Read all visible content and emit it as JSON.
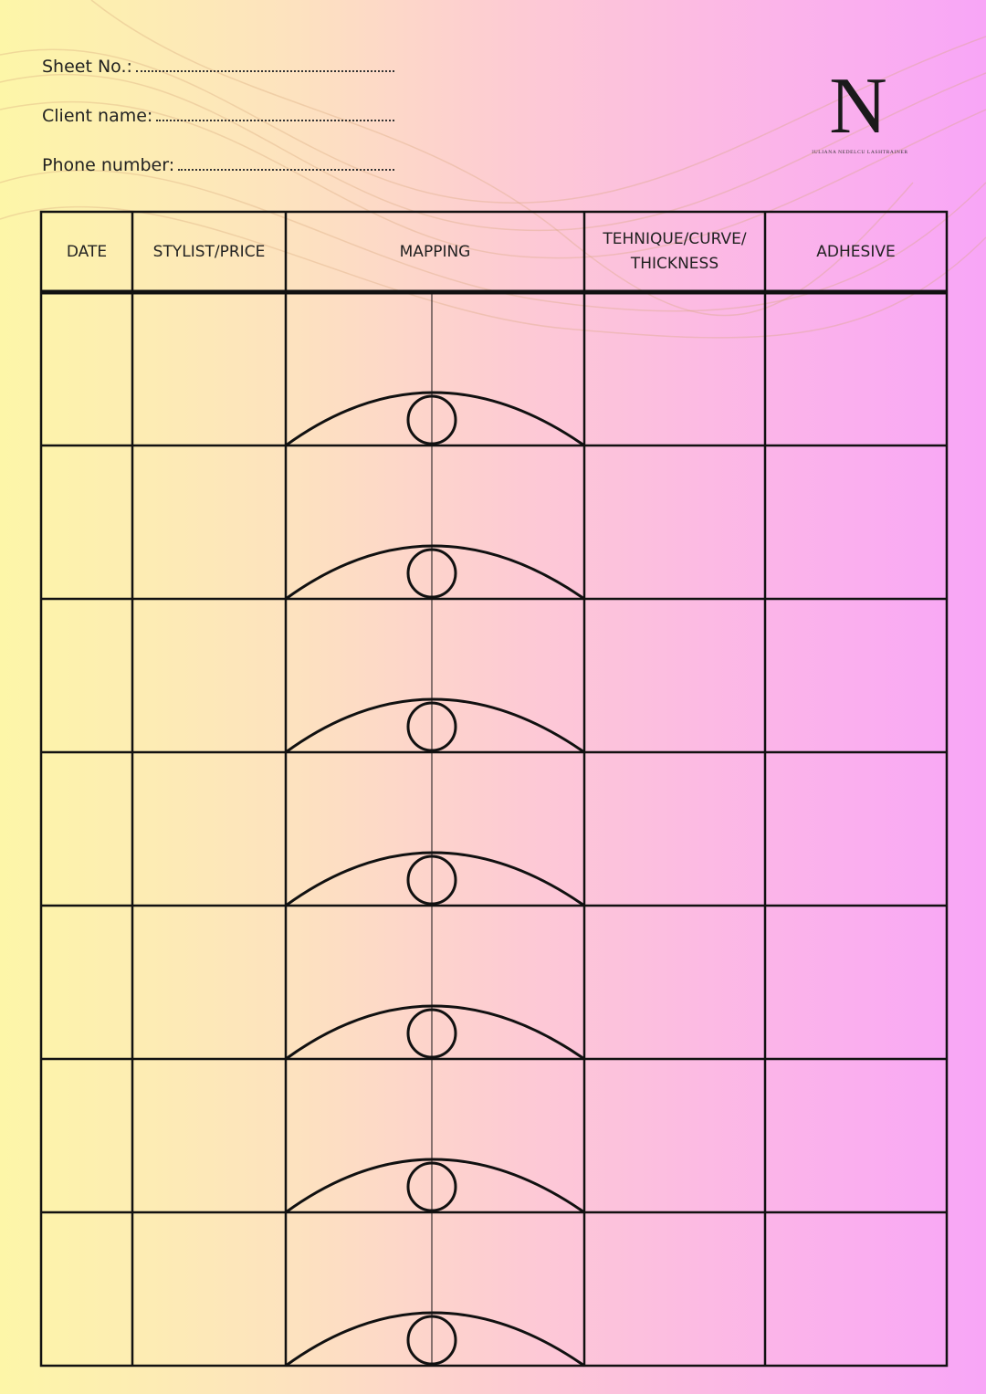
{
  "header": {
    "fields": [
      "Sheet No.:",
      "Client name:",
      "Phone number:"
    ],
    "logo": {
      "letter": "N",
      "tagline": "IULIANA NEDELCU LASHTRAINER"
    }
  },
  "table": {
    "columns": [
      "DATE",
      "STYLIST/PRICE",
      "MAPPING",
      "TEHNIQUE/CURVE/ THICKNESS",
      "ADHESIVE"
    ]
  }
}
